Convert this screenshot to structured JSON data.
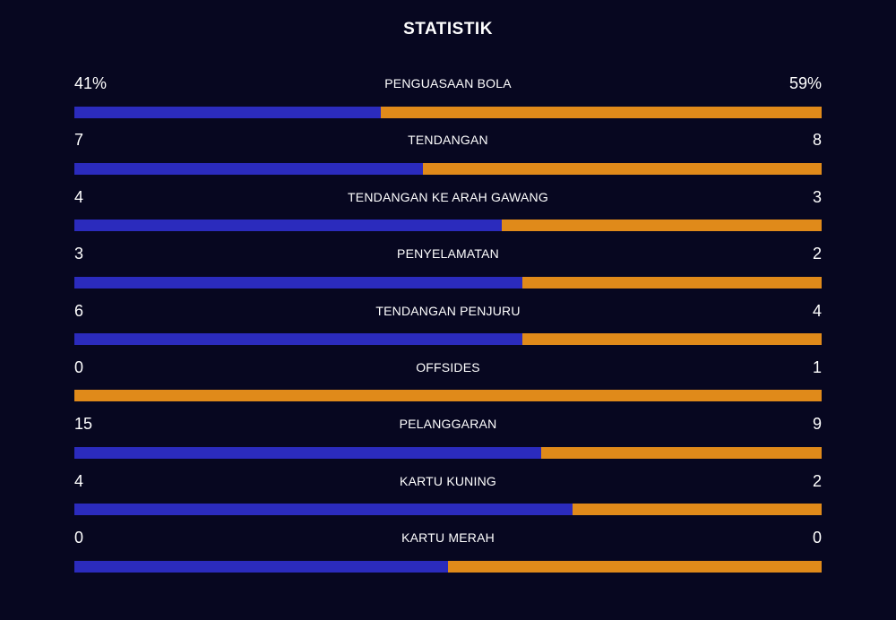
{
  "title": "STATISTIK",
  "colors": {
    "background": "#070720",
    "home": "#2b2bbd",
    "away": "#e08a1a",
    "text": "#ffffff"
  },
  "stats": [
    {
      "label": "PENGUASAAN BOLA",
      "left": "41%",
      "right": "59%",
      "home_share": 0.41
    },
    {
      "label": "TENDANGAN",
      "left": "7",
      "right": "8",
      "home_share": 0.4667
    },
    {
      "label": "TENDANGAN KE ARAH GAWANG",
      "left": "4",
      "right": "3",
      "home_share": 0.5714
    },
    {
      "label": "PENYELAMATAN",
      "left": "3",
      "right": "2",
      "home_share": 0.6
    },
    {
      "label": "TENDANGAN PENJURU",
      "left": "6",
      "right": "4",
      "home_share": 0.6
    },
    {
      "label": "OFFSIDES",
      "left": "0",
      "right": "1",
      "home_share": 0.0
    },
    {
      "label": "PELANGGARAN",
      "left": "15",
      "right": "9",
      "home_share": 0.625
    },
    {
      "label": "KARTU KUNING",
      "left": "4",
      "right": "2",
      "home_share": 0.6667
    },
    {
      "label": "KARTU MERAH",
      "left": "0",
      "right": "0",
      "home_share": 0.5
    }
  ]
}
